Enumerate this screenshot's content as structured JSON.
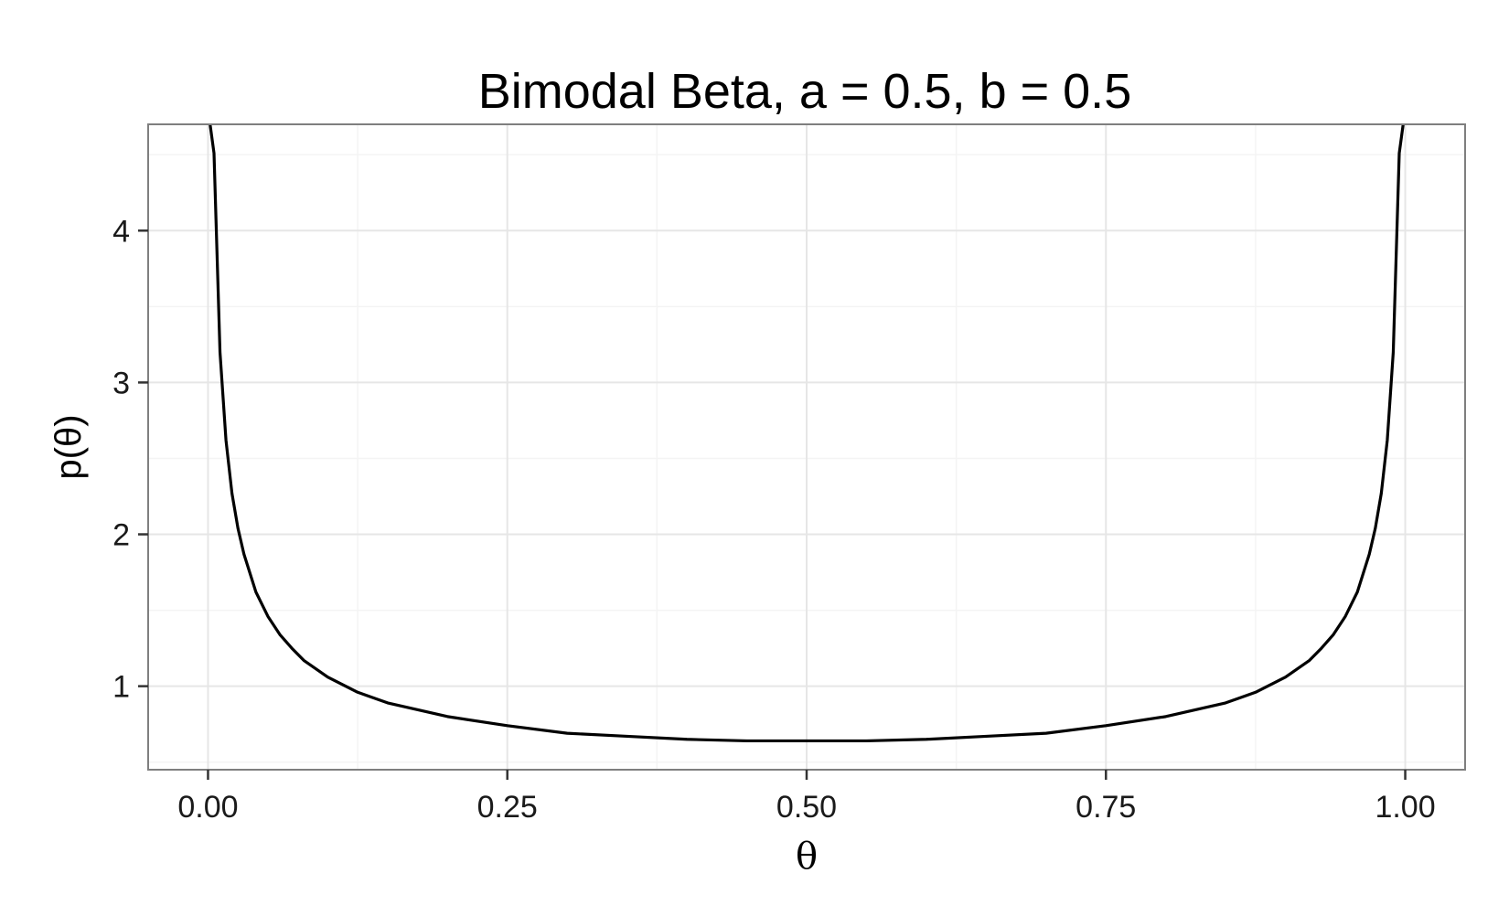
{
  "chart_data": {
    "type": "line",
    "title": "Bimodal Beta, a = 0.5, b = 0.5",
    "xlabel": "θ",
    "ylabel": "p(θ)",
    "xlim": [
      -0.05,
      1.05
    ],
    "ylim": [
      0.45,
      4.7
    ],
    "x_ticks": [
      0.0,
      0.25,
      0.5,
      0.75,
      1.0
    ],
    "x_tick_labels": [
      "0.00",
      "0.25",
      "0.50",
      "0.75",
      "1.00"
    ],
    "y_ticks": [
      1,
      2,
      3,
      4
    ],
    "y_tick_labels": [
      "1",
      "2",
      "3",
      "4"
    ],
    "grid": true,
    "series": [
      {
        "x": [
          0.005,
          0.01,
          0.015,
          0.02,
          0.025,
          0.03,
          0.04,
          0.05,
          0.06,
          0.07,
          0.08,
          0.1,
          0.125,
          0.15,
          0.2,
          0.25,
          0.3,
          0.35,
          0.4,
          0.45,
          0.5,
          0.55,
          0.6,
          0.65,
          0.7,
          0.75,
          0.8,
          0.85,
          0.875,
          0.9,
          0.92,
          0.93,
          0.94,
          0.95,
          0.96,
          0.97,
          0.975,
          0.98,
          0.985,
          0.99,
          0.995
        ],
        "y": [
          4.51,
          3.2,
          2.62,
          2.27,
          2.04,
          1.87,
          1.62,
          1.46,
          1.34,
          1.25,
          1.17,
          1.06,
          0.96,
          0.89,
          0.8,
          0.74,
          0.69,
          0.67,
          0.65,
          0.64,
          0.64,
          0.64,
          0.65,
          0.67,
          0.69,
          0.74,
          0.8,
          0.89,
          0.96,
          1.06,
          1.17,
          1.25,
          1.34,
          1.46,
          1.62,
          1.87,
          2.04,
          2.27,
          2.62,
          3.2,
          4.51
        ],
        "color": "#000000"
      }
    ]
  }
}
